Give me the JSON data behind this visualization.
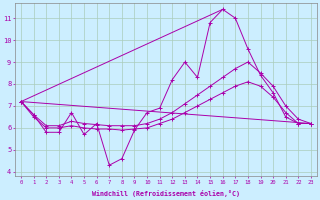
{
  "xlabel": "Windchill (Refroidissement éolien,°C)",
  "background_color": "#cceeff",
  "grid_color": "#aaddcc",
  "line_color": "#aa00aa",
  "xlim": [
    -0.5,
    23.5
  ],
  "ylim": [
    3.8,
    11.7
  ],
  "yticks": [
    4,
    5,
    6,
    7,
    8,
    9,
    10,
    11
  ],
  "xticks": [
    0,
    1,
    2,
    3,
    4,
    5,
    6,
    7,
    8,
    9,
    10,
    11,
    12,
    13,
    14,
    15,
    16,
    17,
    18,
    19,
    20,
    21,
    22,
    23
  ],
  "x": [
    0,
    1,
    2,
    3,
    4,
    5,
    6,
    7,
    8,
    9,
    10,
    11,
    12,
    13,
    14,
    15,
    16,
    17,
    18,
    19,
    20,
    21,
    22,
    23
  ],
  "y_zigzag": [
    7.2,
    6.6,
    5.8,
    5.8,
    6.7,
    5.7,
    6.2,
    4.3,
    4.6,
    5.9,
    6.7,
    6.9,
    8.2,
    9.0,
    8.3,
    10.8,
    11.4,
    11.0,
    9.6,
    8.4,
    7.6,
    6.5,
    6.2,
    6.2
  ],
  "y_line1": [
    7.2,
    6.6,
    6.1,
    6.1,
    6.3,
    6.2,
    6.15,
    6.1,
    6.1,
    6.1,
    6.2,
    6.4,
    6.7,
    7.1,
    7.5,
    7.9,
    8.3,
    8.7,
    9.0,
    8.5,
    7.9,
    7.0,
    6.4,
    6.2
  ],
  "y_line2": [
    7.2,
    6.5,
    6.0,
    6.0,
    6.1,
    6.0,
    5.95,
    5.95,
    5.9,
    5.95,
    6.0,
    6.2,
    6.4,
    6.7,
    7.0,
    7.3,
    7.6,
    7.9,
    8.1,
    7.9,
    7.4,
    6.7,
    6.2,
    6.2
  ],
  "y_line3_x": [
    0,
    16
  ],
  "y_line3_y": [
    7.2,
    11.4
  ],
  "y_line4_x": [
    0,
    23
  ],
  "y_line4_y": [
    7.2,
    6.2
  ]
}
